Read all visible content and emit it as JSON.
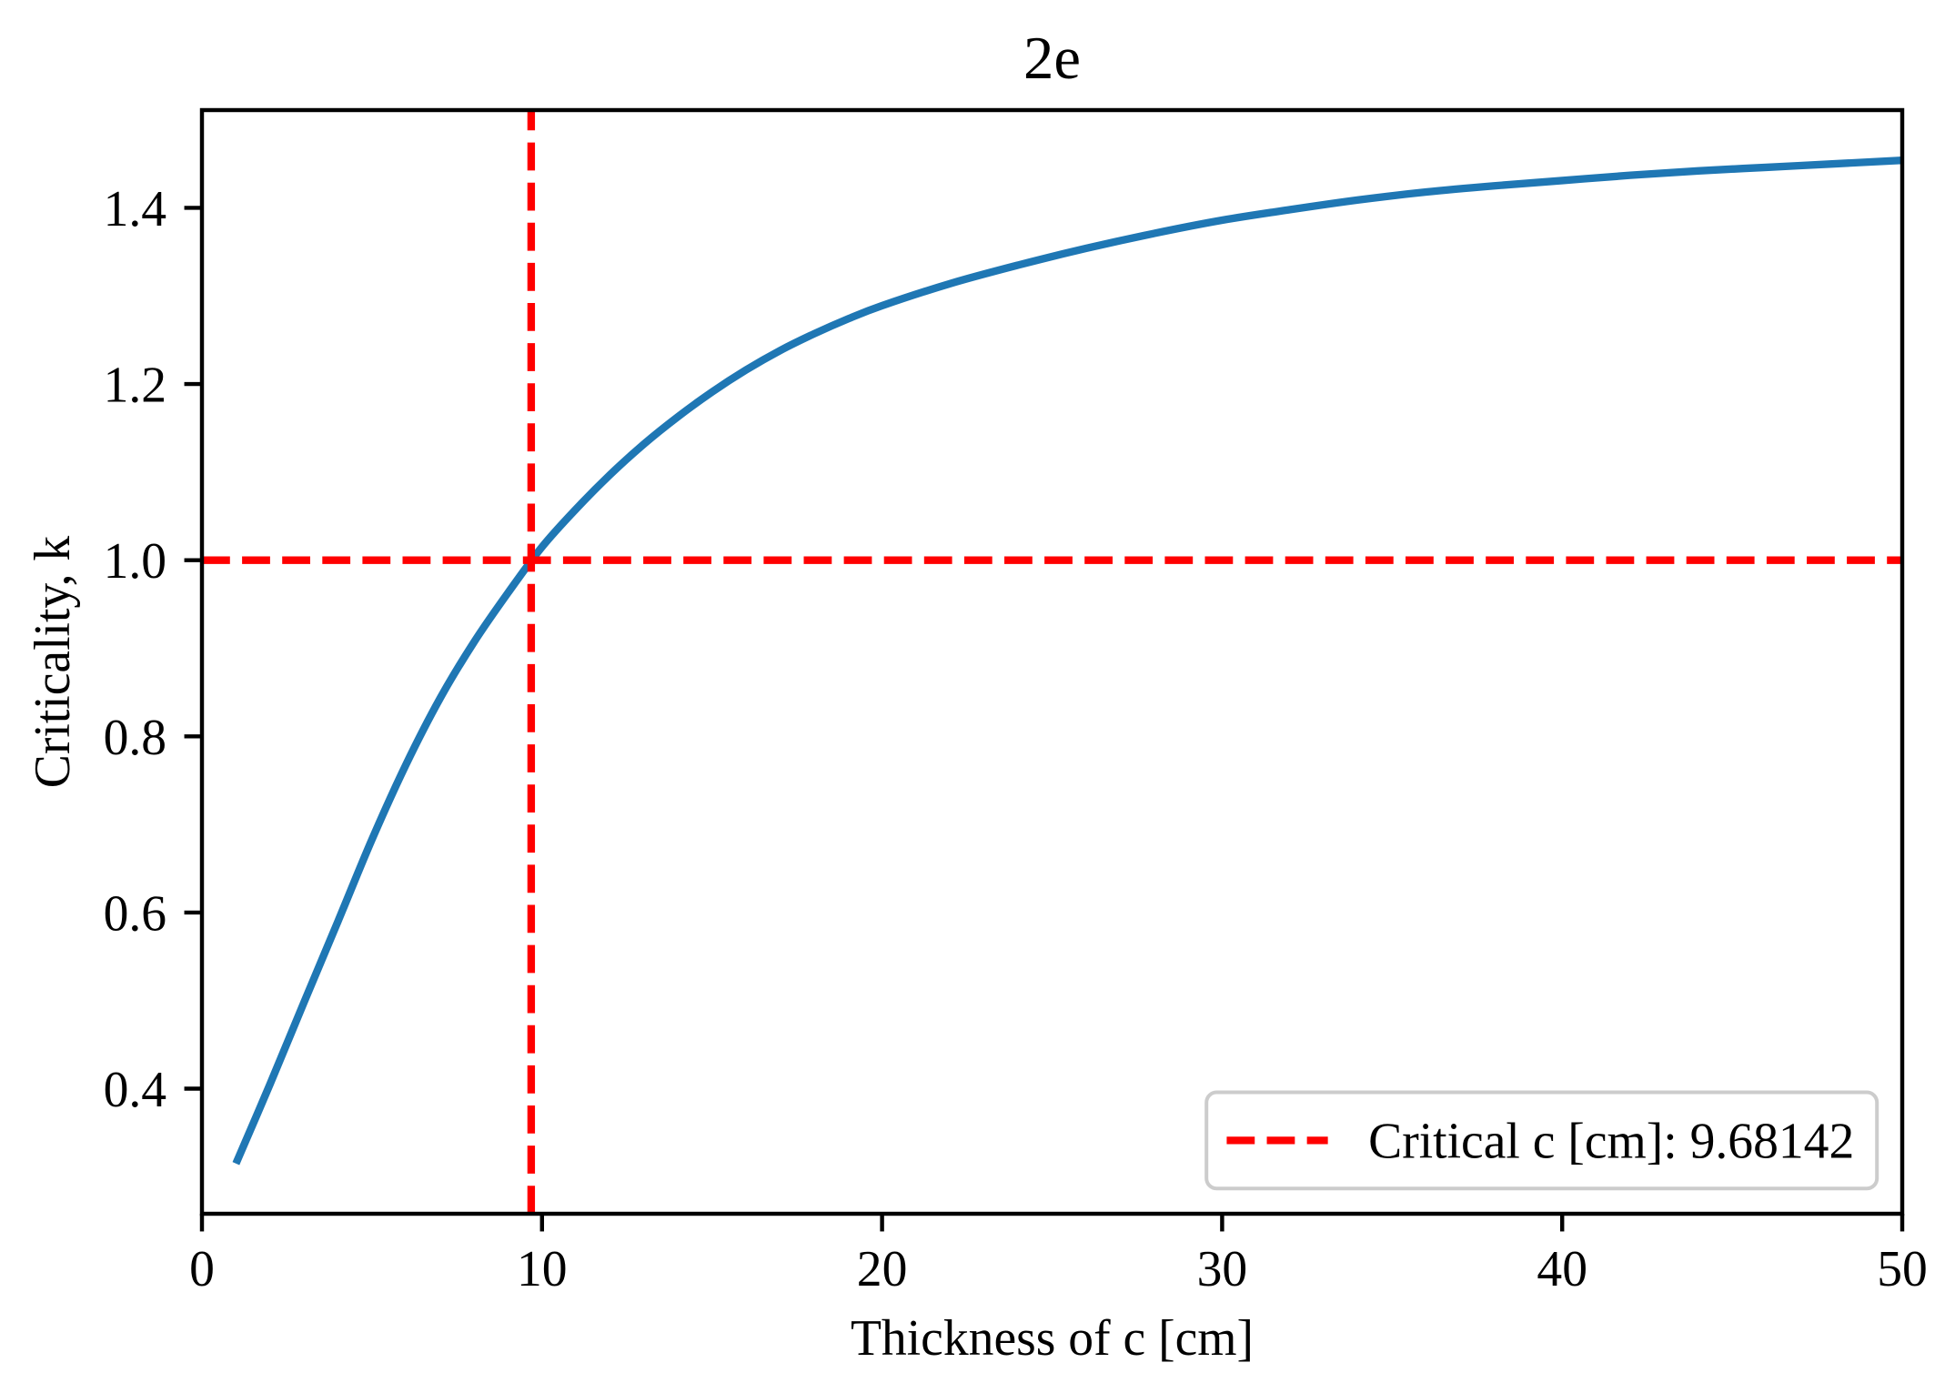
{
  "chart_data": {
    "type": "line",
    "title": "2e",
    "xlabel": "Thickness of c [cm]",
    "ylabel": "Criticality, k",
    "xlim": [
      0,
      50
    ],
    "ylim": [
      0.258,
      1.511
    ],
    "grid": false,
    "x_ticks": {
      "values": [
        0,
        10,
        20,
        30,
        40,
        50
      ],
      "labels": [
        "0",
        "10",
        "20",
        "30",
        "40",
        "50"
      ]
    },
    "y_ticks": {
      "values": [
        0.4,
        0.6,
        0.8,
        1.0,
        1.2,
        1.4
      ],
      "labels": [
        "0.4",
        "0.6",
        "0.8",
        "1.0",
        "1.2",
        "1.4"
      ]
    },
    "series": [
      {
        "color": "#1f77b4",
        "style": "solid",
        "x": [
          1,
          2,
          3,
          4,
          5,
          6,
          7,
          8,
          9,
          10,
          11,
          12,
          13,
          14,
          15,
          16,
          17,
          18,
          19,
          20,
          22,
          24,
          26,
          28,
          30,
          32,
          34,
          36,
          38,
          40,
          42,
          44,
          46,
          48,
          50
        ],
        "y": [
          0.315,
          0.405,
          0.498,
          0.59,
          0.683,
          0.768,
          0.843,
          0.907,
          0.963,
          1.015,
          1.058,
          1.097,
          1.132,
          1.163,
          1.191,
          1.216,
          1.238,
          1.257,
          1.274,
          1.289,
          1.314,
          1.335,
          1.354,
          1.371,
          1.386,
          1.398,
          1.409,
          1.418,
          1.425,
          1.431,
          1.437,
          1.442,
          1.446,
          1.45,
          1.454
        ]
      }
    ],
    "reference_lines": [
      {
        "orientation": "vertical",
        "x": 9.68142,
        "color": "#ff0000",
        "style": "dashed"
      },
      {
        "orientation": "horizontal",
        "y": 1.0,
        "color": "#ff0000",
        "style": "dashed"
      }
    ],
    "legend": {
      "location": "lower-right",
      "entries": [
        {
          "label": "Critical c [cm]: 9.68142",
          "color": "#ff0000",
          "style": "dashed"
        }
      ]
    }
  }
}
